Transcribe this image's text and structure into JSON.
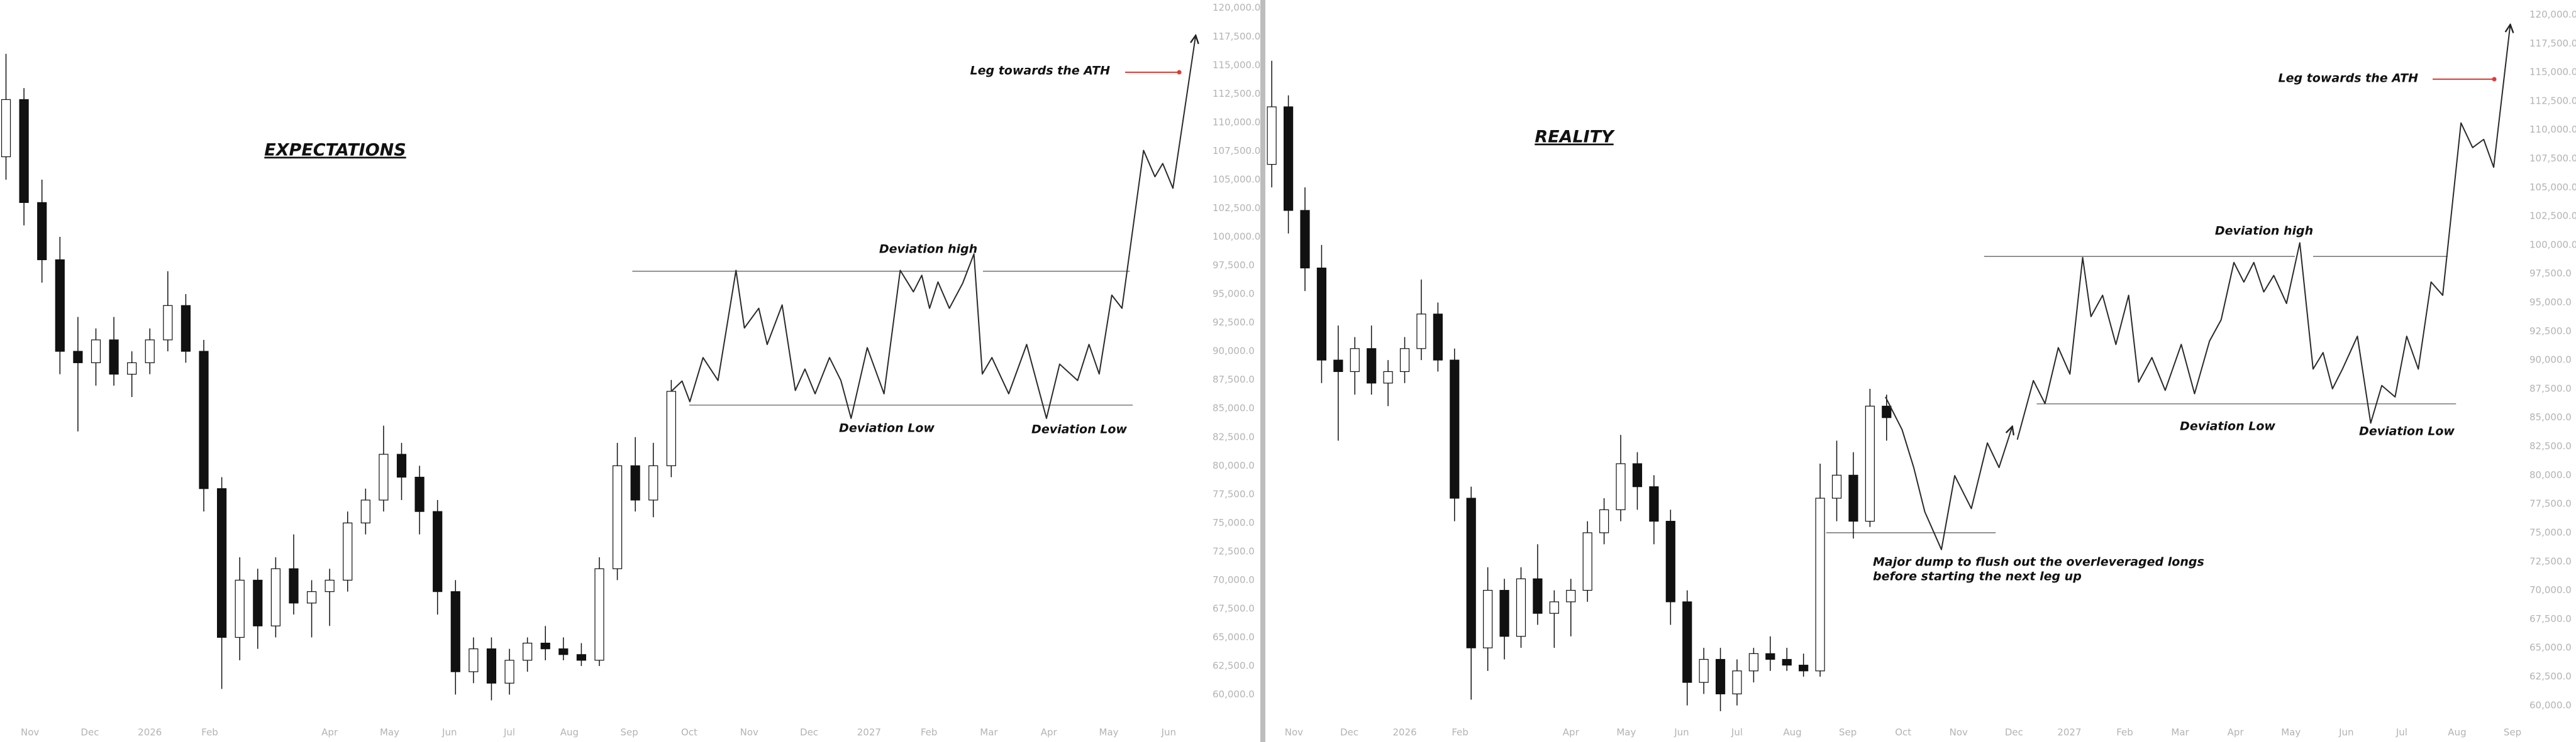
{
  "chart_data": [
    {
      "type": "candlestick",
      "title": "EXPECTATIONS",
      "annotations": [
        "Deviation high",
        "Deviation Low",
        "Deviation Low",
        "Leg towards the ATH"
      ],
      "xlim": [
        -0.5,
        19.5
      ],
      "ylim": [
        57560,
        120700
      ],
      "xticks": [
        {
          "value": 0,
          "label": "Nov"
        },
        {
          "value": 1,
          "label": "Dec"
        },
        {
          "value": 2,
          "label": "2026"
        },
        {
          "value": 3,
          "label": "Feb"
        },
        {
          "value": 5,
          "label": "Apr"
        },
        {
          "value": 6,
          "label": "May"
        },
        {
          "value": 7,
          "label": "Jun"
        },
        {
          "value": 8,
          "label": "Jul"
        },
        {
          "value": 9,
          "label": "Aug"
        },
        {
          "value": 10,
          "label": "Sep"
        },
        {
          "value": 11,
          "label": "Oct"
        },
        {
          "value": 12,
          "label": "Nov"
        },
        {
          "value": 13,
          "label": "Dec"
        },
        {
          "value": 14,
          "label": "2027"
        },
        {
          "value": 15,
          "label": "Feb"
        },
        {
          "value": 16,
          "label": "Mar"
        },
        {
          "value": 17,
          "label": "Apr"
        },
        {
          "value": 18,
          "label": "May"
        },
        {
          "value": 19,
          "label": "Jun"
        }
      ],
      "yticks": [
        {
          "value": 60000,
          "label": "60,000.0"
        },
        {
          "value": 62500,
          "label": "62,500.0"
        },
        {
          "value": 65000,
          "label": "65,000.0"
        },
        {
          "value": 67500,
          "label": "67,500.0"
        },
        {
          "value": 70000,
          "label": "70,000.0"
        },
        {
          "value": 72500,
          "label": "72,500.0"
        },
        {
          "value": 75000,
          "label": "75,000.0"
        },
        {
          "value": 77500,
          "label": "77,500.0"
        },
        {
          "value": 80000,
          "label": "80,000.0"
        },
        {
          "value": 82500,
          "label": "82,500.0"
        },
        {
          "value": 85000,
          "label": "85,000.0"
        },
        {
          "value": 87500,
          "label": "87,500.0"
        },
        {
          "value": 90000,
          "label": "90,000.0"
        },
        {
          "value": 92500,
          "label": "92,500.0"
        },
        {
          "value": 95000,
          "label": "95,000.0"
        },
        {
          "value": 97500,
          "label": "97,500.0"
        },
        {
          "value": 100000,
          "label": "100,000.0"
        },
        {
          "value": 102500,
          "label": "102,500.0"
        },
        {
          "value": 105000,
          "label": "105,000.0"
        },
        {
          "value": 107500,
          "label": "107,500.0"
        },
        {
          "value": 110000,
          "label": "110,000.0"
        },
        {
          "value": 112500,
          "label": "112,500.0"
        },
        {
          "value": 115000,
          "label": "115,000.0"
        },
        {
          "value": 117500,
          "label": "117,500.0"
        },
        {
          "value": 120000,
          "label": "120,000.0"
        }
      ],
      "candles": {
        "x": [
          -0.4,
          -0.1,
          0.2,
          0.5,
          0.8,
          1.1,
          1.4,
          1.7,
          2.0,
          2.3,
          2.6,
          2.9,
          3.2,
          3.5,
          3.8,
          4.1,
          4.4,
          4.7,
          5.0,
          5.3,
          5.6,
          5.9,
          6.2,
          6.5,
          6.8,
          7.1,
          7.4,
          7.7,
          8.0,
          8.3,
          8.6,
          8.9,
          9.2,
          9.5,
          9.8,
          10.1,
          10.4,
          10.7
        ],
        "open": [
          107000,
          112000,
          103000,
          98000,
          90000,
          89000,
          91000,
          88000,
          89000,
          91000,
          94000,
          90000,
          78000,
          65000,
          70000,
          66000,
          71000,
          68000,
          69000,
          70000,
          75000,
          77000,
          81000,
          79000,
          76000,
          69000,
          62000,
          64000,
          61000,
          63000,
          64500,
          64000,
          63500,
          63000,
          71000,
          80000,
          77000,
          80000
        ],
        "high": [
          116000,
          113000,
          105000,
          100000,
          93000,
          92000,
          93000,
          90000,
          92000,
          97000,
          95000,
          91000,
          79000,
          72000,
          71000,
          72000,
          74000,
          70000,
          71000,
          76000,
          78000,
          83500,
          82000,
          80000,
          77000,
          70000,
          65000,
          65000,
          64000,
          65000,
          66000,
          65000,
          64500,
          72000,
          82000,
          82500,
          82000,
          87500
        ],
        "low": [
          105000,
          101000,
          96000,
          88000,
          83000,
          87000,
          87000,
          86000,
          88000,
          90000,
          89000,
          76000,
          60500,
          63000,
          64000,
          65000,
          67000,
          65000,
          66000,
          69000,
          74000,
          76000,
          77000,
          74000,
          67000,
          60000,
          61000,
          59500,
          60000,
          62000,
          63000,
          63000,
          62500,
          62500,
          70000,
          76000,
          75500,
          79000
        ],
        "close": [
          112000,
          103000,
          98000,
          90000,
          89000,
          91000,
          88000,
          89000,
          91000,
          94000,
          90000,
          78000,
          65000,
          70000,
          66000,
          71000,
          68000,
          69000,
          70000,
          75000,
          77000,
          81000,
          79000,
          76000,
          69000,
          62000,
          64000,
          61000,
          63000,
          64500,
          64000,
          63500,
          63000,
          71000,
          80000,
          77000,
          80000,
          86500
        ]
      },
      "lines": [
        {
          "x": [
            10.7,
            10.88,
            11.01,
            11.23,
            11.48,
            11.78,
            11.92,
            12.16,
            12.3,
            12.55,
            12.77,
            12.93,
            13.1,
            13.34,
            13.53,
            13.7,
            13.97,
            14.25,
            14.52,
            14.74,
            14.88,
            15.01,
            15.15,
            15.34,
            15.56,
            15.75,
            15.89,
            16.05,
            16.33,
            16.63,
            16.96,
            17.18,
            17.48,
            17.67,
            17.84,
            18.05,
            18.22,
            18.58,
            18.77,
            18.9,
            19.07,
            19.45
          ],
          "values": [
            86500,
            87400,
            85600,
            89450,
            87450,
            97070,
            92040,
            93760,
            90600,
            94050,
            86580,
            88450,
            86290,
            89450,
            87450,
            84140,
            90320,
            86290,
            97070,
            95200,
            96640,
            93760,
            96060,
            93760,
            95920,
            98510,
            88020,
            89450,
            86290,
            90600,
            84140,
            88880,
            87450,
            90600,
            88020,
            94910,
            93760,
            107560,
            105260,
            106410,
            104250,
            117610
          ]
        }
      ],
      "levels": [
        {
          "value": 97000,
          "xrange": [
            10.05,
            15.65
          ]
        },
        {
          "value": 97000,
          "xrange": [
            15.9,
            18.35
          ]
        },
        {
          "value": 85300,
          "xrange": [
            11.0,
            18.4
          ]
        }
      ]
    },
    {
      "type": "candlestick",
      "title": "REALITY",
      "annotations": [
        "Deviation high",
        "Deviation Low",
        "Deviation Low",
        "Leg towards the ATH",
        "Major dump to flush out the overleveraged longs",
        "before starting the next leg up"
      ],
      "xlim": [
        -0.47,
        22.17
      ],
      "ylim": [
        57860,
        121280
      ],
      "xticks": [
        {
          "value": 0,
          "label": "Nov"
        },
        {
          "value": 1,
          "label": "Dec"
        },
        {
          "value": 2,
          "label": "2026"
        },
        {
          "value": 3,
          "label": "Feb"
        },
        {
          "value": 5,
          "label": "Apr"
        },
        {
          "value": 6,
          "label": "May"
        },
        {
          "value": 7,
          "label": "Jun"
        },
        {
          "value": 8,
          "label": "Jul"
        },
        {
          "value": 9,
          "label": "Aug"
        },
        {
          "value": 10,
          "label": "Sep"
        },
        {
          "value": 11,
          "label": "Oct"
        },
        {
          "value": 12,
          "label": "Nov"
        },
        {
          "value": 13,
          "label": "Dec"
        },
        {
          "value": 14,
          "label": "2027"
        },
        {
          "value": 15,
          "label": "Feb"
        },
        {
          "value": 16,
          "label": "Mar"
        },
        {
          "value": 17,
          "label": "Apr"
        },
        {
          "value": 18,
          "label": "May"
        },
        {
          "value": 19,
          "label": "Jun"
        },
        {
          "value": 20,
          "label": "Jul"
        },
        {
          "value": 21,
          "label": "Aug"
        },
        {
          "value": 22,
          "label": "Sep"
        }
      ],
      "yticks": [
        {
          "value": 60000,
          "label": "60,000.0"
        },
        {
          "value": 62500,
          "label": "62,500.0"
        },
        {
          "value": 65000,
          "label": "65,000.0"
        },
        {
          "value": 67500,
          "label": "67,500.0"
        },
        {
          "value": 70000,
          "label": "70,000.0"
        },
        {
          "value": 72500,
          "label": "72,500.0"
        },
        {
          "value": 75000,
          "label": "75,000.0"
        },
        {
          "value": 77500,
          "label": "77,500.0"
        },
        {
          "value": 80000,
          "label": "80,000.0"
        },
        {
          "value": 82500,
          "label": "82,500.0"
        },
        {
          "value": 85000,
          "label": "85,000.0"
        },
        {
          "value": 87500,
          "label": "87,500.0"
        },
        {
          "value": 90000,
          "label": "90,000.0"
        },
        {
          "value": 92500,
          "label": "92,500.0"
        },
        {
          "value": 95000,
          "label": "95,000.0"
        },
        {
          "value": 97500,
          "label": "97,500.0"
        },
        {
          "value": 100000,
          "label": "100,000.0"
        },
        {
          "value": 102500,
          "label": "102,500.0"
        },
        {
          "value": 105000,
          "label": "105,000.0"
        },
        {
          "value": 107500,
          "label": "107,500.0"
        },
        {
          "value": 110000,
          "label": "110,000.0"
        },
        {
          "value": 112500,
          "label": "112,500.0"
        },
        {
          "value": 115000,
          "label": "115,000.0"
        },
        {
          "value": 117500,
          "label": "117,500.0"
        },
        {
          "value": 120000,
          "label": "120,000.0"
        }
      ],
      "candles": {
        "x": [
          -0.4,
          -0.1,
          0.2,
          0.5,
          0.8,
          1.1,
          1.4,
          1.7,
          2.0,
          2.3,
          2.6,
          2.9,
          3.2,
          3.5,
          3.8,
          4.1,
          4.4,
          4.7,
          5.0,
          5.3,
          5.6,
          5.9,
          6.2,
          6.5,
          6.8,
          7.1,
          7.4,
          7.7,
          8.0,
          8.3,
          8.6,
          8.9,
          9.2,
          9.5,
          9.8,
          10.1,
          10.4,
          10.7
        ],
        "open": [
          107000,
          112000,
          103000,
          98000,
          90000,
          89000,
          91000,
          88000,
          89000,
          91000,
          94000,
          90000,
          78000,
          65000,
          70000,
          66000,
          71000,
          68000,
          69000,
          70000,
          75000,
          77000,
          81000,
          79000,
          76000,
          69000,
          62000,
          64000,
          61000,
          63000,
          64500,
          64000,
          63500,
          63000,
          78000,
          80000,
          76000,
          86000
        ],
        "high": [
          116000,
          113000,
          105000,
          100000,
          93000,
          92000,
          93000,
          90000,
          92000,
          97000,
          95000,
          91000,
          79000,
          72000,
          71000,
          72000,
          74000,
          70000,
          71000,
          76000,
          78000,
          83500,
          82000,
          80000,
          77000,
          70000,
          65000,
          65000,
          64000,
          65000,
          66000,
          65000,
          64500,
          81000,
          83000,
          82000,
          87500,
          87000
        ],
        "low": [
          105000,
          101000,
          96000,
          88000,
          83000,
          87000,
          87000,
          86000,
          88000,
          90000,
          89000,
          76000,
          60500,
          63000,
          64000,
          65000,
          67000,
          65000,
          66000,
          69000,
          74000,
          76000,
          77000,
          74000,
          67000,
          60000,
          61000,
          59500,
          60000,
          62000,
          63000,
          63000,
          62500,
          62500,
          76000,
          74500,
          75500,
          83000
        ],
        "close": [
          112000,
          103000,
          98000,
          90000,
          89000,
          91000,
          88000,
          89000,
          91000,
          94000,
          90000,
          78000,
          65000,
          70000,
          66000,
          71000,
          68000,
          69000,
          70000,
          75000,
          77000,
          81000,
          79000,
          76000,
          69000,
          62000,
          64000,
          61000,
          63000,
          64500,
          64000,
          63500,
          63000,
          78000,
          80000,
          76000,
          86000,
          85000
        ]
      },
      "lines": [
        {
          "x": [
            10.68,
            10.98,
            11.19,
            11.39,
            11.69,
            11.93,
            12.23,
            12.52,
            12.73,
            12.97
          ],
          "values": [
            86800,
            83950,
            80670,
            76820,
            73540,
            79960,
            77100,
            82800,
            80670,
            84240
          ]
        },
        {
          "x": [
            13.06,
            13.35,
            13.56,
            13.8,
            14.01,
            14.24,
            14.39,
            14.6,
            14.84,
            15.07,
            15.25,
            15.49,
            15.73,
            16.02,
            16.26,
            16.53,
            16.74,
            16.97,
            17.15,
            17.33,
            17.51,
            17.69,
            17.92,
            18.16,
            18.4,
            18.58,
            18.75,
            18.93,
            19.2,
            19.44,
            19.64,
            19.88,
            20.09,
            20.3,
            20.53,
            20.74,
            21.07,
            21.28,
            21.48,
            21.66,
            21.96
          ],
          "values": [
            83090,
            88220,
            86220,
            91080,
            88790,
            98910,
            93780,
            95630,
            91360,
            95630,
            88080,
            90220,
            87370,
            91360,
            87080,
            91650,
            93500,
            98480,
            96780,
            98480,
            95920,
            97350,
            94920,
            100190,
            89220,
            90650,
            87510,
            89220,
            92070,
            84520,
            87790,
            86800,
            92070,
            89220,
            96780,
            95630,
            110600,
            108460,
            109170,
            106750,
            119150
          ]
        }
      ],
      "levels": [
        {
          "value": 99000,
          "xrange": [
            12.46,
            18.07
          ]
        },
        {
          "value": 99000,
          "xrange": [
            18.4,
            20.83
          ]
        },
        {
          "value": 86200,
          "xrange": [
            13.41,
            20.98
          ]
        },
        {
          "value": 75000,
          "xrange": [
            9.61,
            12.67
          ]
        }
      ]
    }
  ]
}
